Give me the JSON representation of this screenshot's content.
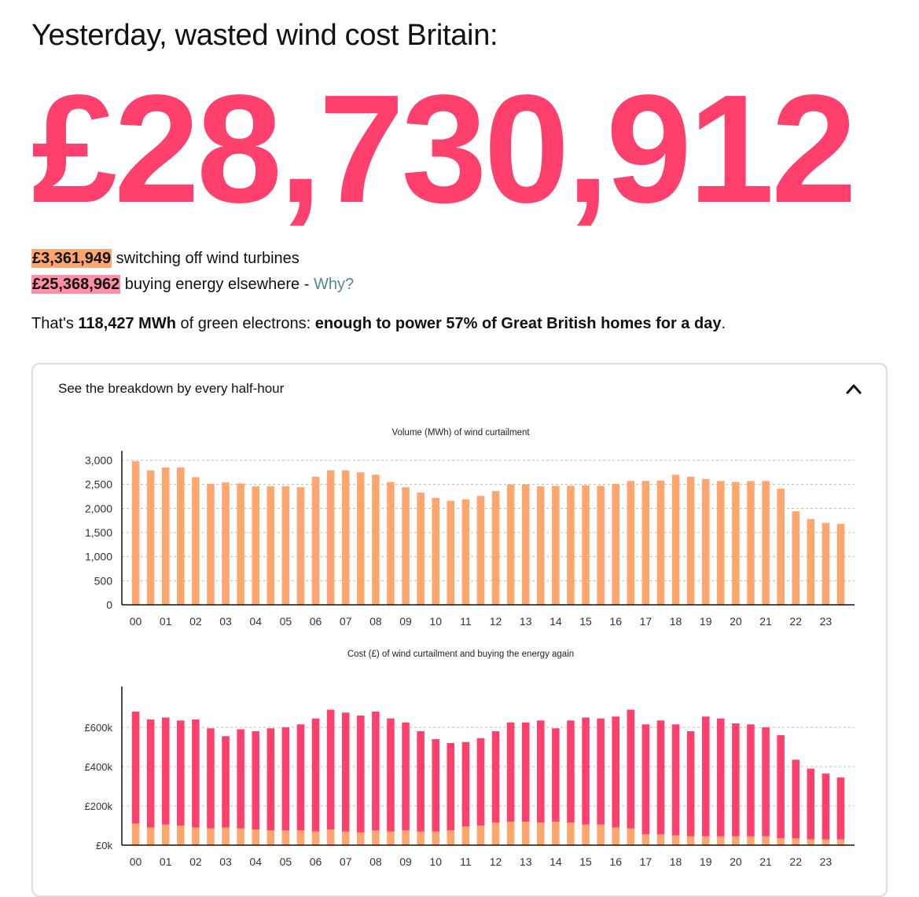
{
  "headline": "Yesterday, wasted wind cost Britain:",
  "total_cost": "£28,730,912",
  "breakdown": {
    "switch_off_amount": "£3,361,949",
    "switch_off_label": " switching off wind turbines",
    "buy_amount": "£25,368,962",
    "buy_label": " buying energy elsewhere - ",
    "why_link": "Why?"
  },
  "summary": {
    "prefix": "That's ",
    "mwh": "118,427 MWh",
    "middle": " of green electrons: ",
    "emphasis": "enough to power 57% of Great British homes for a day",
    "suffix": "."
  },
  "panel": {
    "title": "See the breakdown by every half-hour",
    "toggle_icon": "chevron-up-icon"
  },
  "colors": {
    "accent": "#ff3f6c",
    "switch_off": "#ffa56e",
    "buy": "#ff3f6c",
    "link": "#4f8a8b"
  },
  "chart_data": [
    {
      "type": "bar",
      "title": "Volume (MWh) of wind curtailment",
      "xlabel": "",
      "ylabel": "",
      "tick_labels_x": [
        "00",
        "01",
        "02",
        "03",
        "04",
        "05",
        "06",
        "07",
        "08",
        "09",
        "10",
        "11",
        "12",
        "13",
        "14",
        "15",
        "16",
        "17",
        "18",
        "19",
        "20",
        "21",
        "22",
        "23"
      ],
      "y_ticks": [
        0,
        500,
        1000,
        1500,
        2000,
        2500,
        3000
      ],
      "y_tick_labels": [
        "0",
        "500",
        "1,000",
        "1,500",
        "2,000",
        "2,500",
        "3,000"
      ],
      "ylim": [
        0,
        3000
      ],
      "grid": true,
      "series": [
        {
          "color": "#ffa56e",
          "values": [
            2980,
            2790,
            2850,
            2850,
            2650,
            2510,
            2540,
            2520,
            2460,
            2460,
            2460,
            2440,
            2660,
            2790,
            2790,
            2750,
            2700,
            2550,
            2440,
            2330,
            2220,
            2160,
            2190,
            2260,
            2360,
            2500,
            2500,
            2460,
            2470,
            2470,
            2480,
            2470,
            2510,
            2570,
            2570,
            2580,
            2700,
            2660,
            2610,
            2570,
            2550,
            2570,
            2570,
            2410,
            1940,
            1780,
            1700,
            1680
          ]
        }
      ]
    },
    {
      "type": "bar",
      "stacked": true,
      "title": "Cost (£) of wind curtailment and buying the energy again",
      "xlabel": "",
      "ylabel": "",
      "tick_labels_x": [
        "00",
        "01",
        "02",
        "03",
        "04",
        "05",
        "06",
        "07",
        "08",
        "09",
        "10",
        "11",
        "12",
        "13",
        "14",
        "15",
        "16",
        "17",
        "18",
        "19",
        "20",
        "21",
        "22",
        "23"
      ],
      "y_ticks": [
        0,
        200000,
        400000,
        600000
      ],
      "y_tick_labels": [
        "£0k",
        "£200k",
        "£400k",
        "£600k"
      ],
      "ylim": [
        0,
        760000
      ],
      "grid": true,
      "series": [
        {
          "color": "#ffa56e",
          "values": [
            110000,
            90000,
            105000,
            100000,
            90000,
            85000,
            90000,
            85000,
            80000,
            75000,
            75000,
            75000,
            70000,
            80000,
            70000,
            65000,
            75000,
            70000,
            75000,
            70000,
            70000,
            75000,
            95000,
            100000,
            115000,
            120000,
            120000,
            115000,
            120000,
            115000,
            105000,
            105000,
            90000,
            85000,
            55000,
            55000,
            50000,
            45000,
            45000,
            45000,
            45000,
            45000,
            45000,
            35000,
            35000,
            30000,
            30000,
            30000
          ]
        },
        {
          "color": "#ff3f6c",
          "values": [
            570000,
            550000,
            545000,
            535000,
            550000,
            510000,
            465000,
            505000,
            500000,
            520000,
            525000,
            540000,
            575000,
            610000,
            605000,
            595000,
            605000,
            575000,
            550000,
            510000,
            470000,
            445000,
            430000,
            445000,
            465000,
            505000,
            505000,
            520000,
            475000,
            520000,
            545000,
            540000,
            565000,
            605000,
            560000,
            580000,
            565000,
            535000,
            610000,
            600000,
            575000,
            570000,
            555000,
            525000,
            400000,
            360000,
            335000,
            315000
          ]
        }
      ]
    }
  ]
}
